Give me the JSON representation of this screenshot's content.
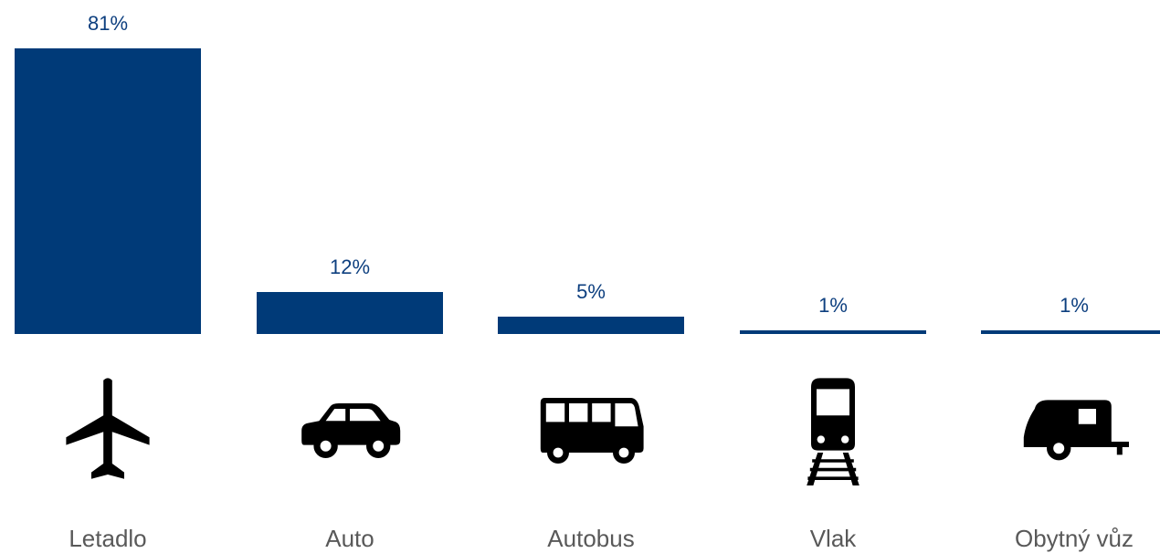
{
  "chart_data": {
    "type": "bar",
    "categories": [
      "Letadlo",
      "Auto",
      "Autobus",
      "Vlak",
      "Obytný vůz"
    ],
    "values": [
      81,
      12,
      5,
      1,
      1
    ],
    "value_labels": [
      "81%",
      "12%",
      "5%",
      "1%",
      "1%"
    ],
    "unit": "%",
    "ylim": [
      0,
      81
    ],
    "grid": false,
    "title": "",
    "xlabel": "",
    "ylabel": ""
  },
  "icons": [
    "airplane-icon",
    "car-icon",
    "bus-icon",
    "train-icon",
    "caravan-icon"
  ],
  "colors": {
    "bar": "#003a78",
    "value_text": "#0d3f7f",
    "category_text": "#595959",
    "icon": "#000000"
  }
}
